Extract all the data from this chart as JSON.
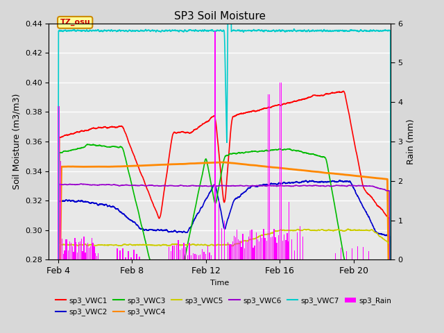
{
  "title": "SP3 Soil Moisture",
  "xlabel": "Time",
  "ylabel_left": "Soil Moisture (m3/m3)",
  "ylabel_right": "Rain (mm)",
  "ylim_left": [
    0.28,
    0.44
  ],
  "ylim_right": [
    0.0,
    6.0
  ],
  "xrange": [
    3.5,
    22.0
  ],
  "xtick_labels": [
    "Feb 4",
    "Feb 8",
    "Feb 12",
    "Feb 16",
    "Feb 20"
  ],
  "xtick_positions": [
    4,
    8,
    12,
    16,
    20
  ],
  "colors": {
    "VWC1": "#ff0000",
    "VWC2": "#0000cc",
    "VWC3": "#00bb00",
    "VWC4": "#ff8800",
    "VWC5": "#cccc00",
    "VWC6": "#9900cc",
    "VWC7": "#00cccc",
    "Rain": "#ff00ff"
  },
  "fig_bg": "#d8d8d8",
  "plot_bg": "#e8e8e8",
  "annotation": {
    "text": "TZ_osu",
    "facecolor": "#ffff99",
    "edgecolor": "#cc8800"
  },
  "legend_entries": [
    {
      "label": "sp3_VWC1",
      "color": "#ff0000"
    },
    {
      "label": "sp3_VWC2",
      "color": "#0000cc"
    },
    {
      "label": "sp3_VWC3",
      "color": "#00bb00"
    },
    {
      "label": "sp3_VWC4",
      "color": "#ff8800"
    },
    {
      "label": "sp3_VWC5",
      "color": "#cccc00"
    },
    {
      "label": "sp3_VWC6",
      "color": "#9900cc"
    },
    {
      "label": "sp3_VWC7",
      "color": "#00cccc"
    },
    {
      "label": "sp3_Rain",
      "color": "#ff00ff"
    }
  ]
}
